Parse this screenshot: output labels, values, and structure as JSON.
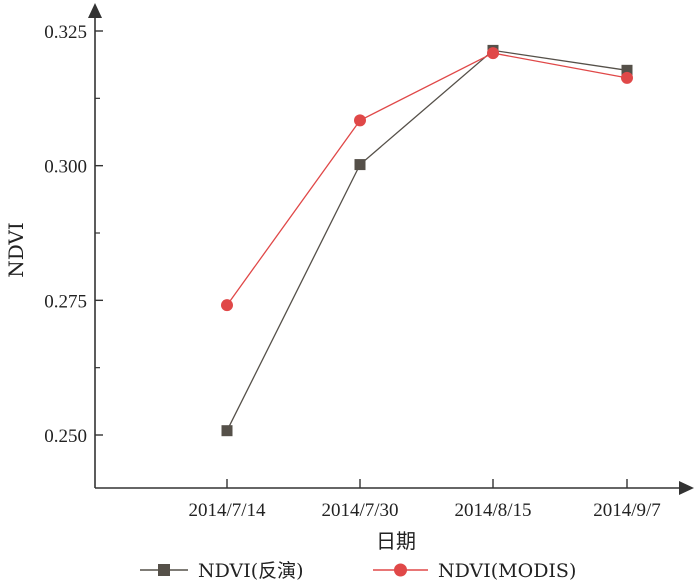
{
  "chart_data": {
    "type": "line",
    "title": "",
    "xlabel": "日期",
    "ylabel": "NDVI",
    "categories": [
      "2014/7/14",
      "2014/7/30",
      "2014/8/15",
      "2014/9/7"
    ],
    "y_ticks": [
      "0.250",
      "0.275",
      "0.300",
      "0.325"
    ],
    "ylim": [
      0.2423,
      0.3285
    ],
    "grid": false,
    "legend_position": "bottom",
    "series": [
      {
        "name": "NDVI(反演)",
        "marker": "square",
        "color": "#555049",
        "values": [
          0.2508,
          0.3002,
          0.3214,
          0.3177
        ]
      },
      {
        "name": "NDVI(MODIS)",
        "marker": "circle",
        "color": "#e04848",
        "values": [
          0.2741,
          0.3084,
          0.3209,
          0.3163
        ]
      }
    ]
  }
}
